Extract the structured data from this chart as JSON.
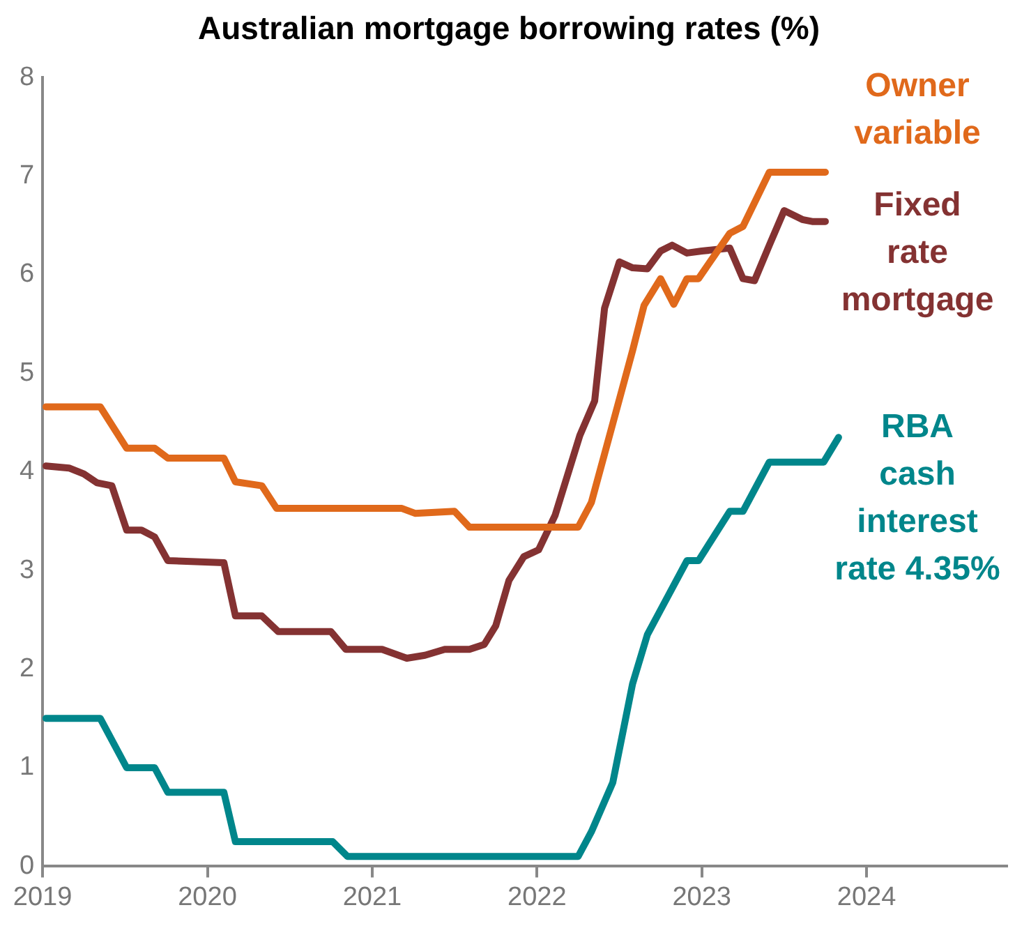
{
  "chart_data": {
    "type": "line",
    "title": "Australian mortgage borrowing rates (%)",
    "xlim": [
      2019,
      2024.85
    ],
    "xticks": [
      2019,
      2020,
      2021,
      2022,
      2023,
      2024
    ],
    "ylim": [
      0,
      8
    ],
    "yticks": [
      0,
      1,
      2,
      3,
      4,
      5,
      6,
      7,
      8
    ],
    "grid": false,
    "legend": false,
    "marker": "none",
    "line_style": "solid",
    "series": [
      {
        "name": "Owner variable",
        "color": "#e0691b",
        "x": [
          2019.02,
          2019.35,
          2019.51,
          2019.68,
          2019.76,
          2020.1,
          2020.17,
          2020.33,
          2020.42,
          2021.18,
          2021.26,
          2021.5,
          2021.59,
          2022.25,
          2022.33,
          2022.46,
          2022.58,
          2022.65,
          2022.75,
          2022.83,
          2022.91,
          2022.98,
          2023.17,
          2023.25,
          2023.41,
          2023.75
        ],
        "values": [
          4.66,
          4.66,
          4.24,
          4.24,
          4.14,
          4.14,
          3.9,
          3.86,
          3.63,
          3.63,
          3.58,
          3.6,
          3.44,
          3.44,
          3.69,
          4.49,
          5.23,
          5.69,
          5.96,
          5.7,
          5.96,
          5.96,
          6.42,
          6.49,
          7.04,
          7.04
        ]
      },
      {
        "name": "Fixed rate mortgage",
        "color": "#843232",
        "x": [
          2019.02,
          2019.16,
          2019.25,
          2019.33,
          2019.42,
          2019.51,
          2019.6,
          2019.68,
          2019.76,
          2020.1,
          2020.17,
          2020.33,
          2020.43,
          2020.75,
          2020.84,
          2021.06,
          2021.21,
          2021.32,
          2021.44,
          2021.59,
          2021.68,
          2021.75,
          2021.83,
          2021.92,
          2022.01,
          2022.11,
          2022.26,
          2022.35,
          2022.41,
          2022.5,
          2022.58,
          2022.67,
          2022.75,
          2022.82,
          2022.91,
          2023.0,
          2023.17,
          2023.25,
          2023.32,
          2023.41,
          2023.5,
          2023.61,
          2023.67,
          2023.75
        ],
        "values": [
          4.06,
          4.04,
          3.98,
          3.89,
          3.86,
          3.41,
          3.41,
          3.34,
          3.1,
          3.08,
          2.54,
          2.54,
          2.38,
          2.38,
          2.2,
          2.2,
          2.11,
          2.14,
          2.2,
          2.2,
          2.25,
          2.44,
          2.9,
          3.14,
          3.21,
          3.56,
          4.37,
          4.72,
          5.66,
          6.13,
          6.07,
          6.06,
          6.24,
          6.3,
          6.22,
          6.24,
          6.27,
          5.96,
          5.94,
          6.3,
          6.65,
          6.56,
          6.54,
          6.54
        ]
      },
      {
        "name": "RBA cash interest rate 4.35%",
        "color": "#00868b",
        "x": [
          2019.02,
          2019.35,
          2019.51,
          2019.68,
          2019.76,
          2020.1,
          2020.17,
          2020.76,
          2020.85,
          2022.25,
          2022.33,
          2022.46,
          2022.58,
          2022.67,
          2022.75,
          2022.91,
          2022.98,
          2023.17,
          2023.25,
          2023.41,
          2023.74,
          2023.83
        ],
        "values": [
          1.5,
          1.5,
          1.0,
          1.0,
          0.75,
          0.75,
          0.25,
          0.25,
          0.1,
          0.1,
          0.35,
          0.85,
          1.85,
          2.35,
          2.6,
          3.1,
          3.1,
          3.6,
          3.6,
          4.1,
          4.1,
          4.35
        ]
      }
    ]
  }
}
